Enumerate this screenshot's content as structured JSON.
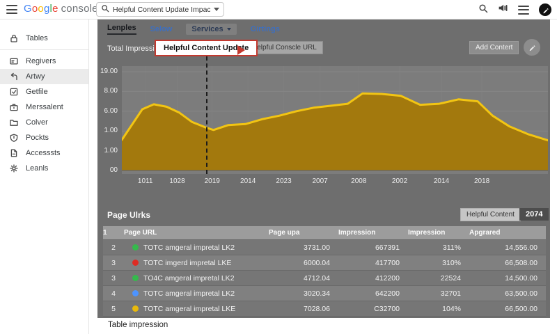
{
  "topbar": {
    "logo": {
      "letters": [
        {
          "ch": "G",
          "color": "#4285F4"
        },
        {
          "ch": "o",
          "color": "#EA4335"
        },
        {
          "ch": "o",
          "color": "#FBBC05"
        },
        {
          "ch": "g",
          "color": "#4285F4"
        },
        {
          "ch": "l",
          "color": "#34A853"
        },
        {
          "ch": "e",
          "color": "#EA4335"
        }
      ],
      "suffix": "console"
    },
    "search_value": "Helpful Content Update Impact"
  },
  "sidebar": {
    "items": [
      {
        "label": "Tables",
        "icon": "lock-icon",
        "divider_after": true
      },
      {
        "label": "Regivers",
        "icon": "card-icon"
      },
      {
        "label": "Artwy",
        "icon": "arrow-left-icon",
        "selected": true
      },
      {
        "label": "Getfile",
        "icon": "check-square-icon"
      },
      {
        "label": "Merssalent",
        "icon": "briefcase-icon"
      },
      {
        "label": "Colver",
        "icon": "folder-icon"
      },
      {
        "label": "Pockts",
        "icon": "shield-icon"
      },
      {
        "label": "Accesssts",
        "icon": "file-icon"
      },
      {
        "label": "Leanls",
        "icon": "gear-icon"
      }
    ]
  },
  "tabs": [
    {
      "label": "Lenples",
      "active": true,
      "style": "dark"
    },
    {
      "label": "Selow",
      "style": "link"
    },
    {
      "label": "Services",
      "style": "chip",
      "dropdown": true
    },
    {
      "label": "Girtings",
      "style": "link"
    }
  ],
  "chart_header": {
    "title": "Total Impressions",
    "callout": "Helpful Content Update",
    "callout_button": "Helpful Conscle URL",
    "add_button": "Add Contert"
  },
  "chart_data": {
    "type": "area",
    "title": "Total Impressions",
    "y_ticks": [
      "19.00",
      "8.00",
      "6.00",
      "1.00",
      "1.00",
      "00"
    ],
    "x_ticks": [
      "1011",
      "1028",
      "2019",
      "2014",
      "2023",
      "2007",
      "2008",
      "2002",
      "2014",
      "2018"
    ],
    "annotation": {
      "label": "Helpful Content Update",
      "x_fraction": 0.197
    },
    "line_color": "#f2c513",
    "fill_color": "#a3790d",
    "grid": true,
    "points": [
      [
        0.0,
        0.31
      ],
      [
        0.048,
        0.62
      ],
      [
        0.075,
        0.67
      ],
      [
        0.105,
        0.645
      ],
      [
        0.135,
        0.585
      ],
      [
        0.165,
        0.49
      ],
      [
        0.197,
        0.435
      ],
      [
        0.215,
        0.41
      ],
      [
        0.25,
        0.46
      ],
      [
        0.29,
        0.47
      ],
      [
        0.33,
        0.52
      ],
      [
        0.37,
        0.555
      ],
      [
        0.41,
        0.6
      ],
      [
        0.45,
        0.635
      ],
      [
        0.49,
        0.655
      ],
      [
        0.53,
        0.675
      ],
      [
        0.565,
        0.78
      ],
      [
        0.61,
        0.775
      ],
      [
        0.655,
        0.755
      ],
      [
        0.7,
        0.665
      ],
      [
        0.745,
        0.675
      ],
      [
        0.79,
        0.72
      ],
      [
        0.835,
        0.7
      ],
      [
        0.87,
        0.555
      ],
      [
        0.91,
        0.445
      ],
      [
        0.955,
        0.365
      ],
      [
        1.0,
        0.305
      ]
    ]
  },
  "table_section": {
    "title": "Page Ulrks",
    "button": "Helpful Content",
    "badge": "2074",
    "columns": [
      "1",
      "Page URL",
      "Page upa",
      "Impression",
      "Impression",
      "Apgrared"
    ],
    "rows": [
      {
        "index": "2",
        "dot": "#35b94c",
        "url": "TOTC amgeral impretal LK2",
        "c1": "3731.00",
        "c2": "667391",
        "c3": "311%",
        "c4": "14,556.00"
      },
      {
        "index": "3",
        "dot": "#dd2c24",
        "url": "TOTC imgerd impretal LKE",
        "c1": "6000.04",
        "c2": "417700",
        "c3": "310%",
        "c4": "66,508.00"
      },
      {
        "index": "3",
        "dot": "#35b94c",
        "url": "TO4C amgeral impretal LK2",
        "c1": "4712.04",
        "c2": "412200",
        "c3": "22524",
        "c4": "14,500.00"
      },
      {
        "index": "4",
        "dot": "#4d94ff",
        "url": "TOTC amgeral impretal LK2",
        "c1": "3020.34",
        "c2": "642200",
        "c3": "32701",
        "c4": "63,500.00"
      },
      {
        "index": "5",
        "dot": "#e8b90c",
        "url": "TOTC amgeral impretal LKE",
        "c1": "7028.06",
        "c2": "C32700",
        "c3": "104%",
        "c4": "66,500.00"
      }
    ]
  },
  "footer": {
    "label": "Table impression"
  }
}
